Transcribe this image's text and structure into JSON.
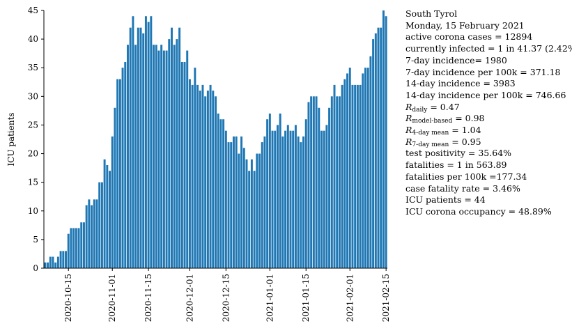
{
  "chart_data": {
    "type": "bar",
    "ylabel": "ICU patients",
    "xlabel": "",
    "ylim": [
      0,
      45
    ],
    "yticks": [
      0,
      5,
      10,
      15,
      20,
      25,
      30,
      35,
      40,
      45
    ],
    "start_date": "2020-10-06",
    "end_date": "2021-02-15",
    "xtick_labels": [
      "2020-10-15",
      "2020-11-01",
      "2020-11-15",
      "2020-12-01",
      "2020-12-15",
      "2021-01-01",
      "2021-01-15",
      "2021-02-01",
      "2021-02-15"
    ],
    "bar_color": "#1f77b4",
    "grid": false,
    "values": [
      1,
      1,
      2,
      2,
      1,
      2,
      3,
      3,
      3,
      6,
      7,
      7,
      7,
      7,
      8,
      8,
      11,
      12,
      11,
      12,
      12,
      15,
      15,
      19,
      18,
      17,
      23,
      28,
      33,
      33,
      35,
      36,
      39,
      42,
      44,
      39,
      42,
      42,
      41,
      44,
      43,
      44,
      39,
      39,
      38,
      39,
      38,
      38,
      40,
      42,
      39,
      40,
      42,
      36,
      36,
      38,
      33,
      32,
      35,
      32,
      31,
      32,
      30,
      31,
      32,
      31,
      30,
      27,
      26,
      26,
      24,
      22,
      22,
      23,
      23,
      20,
      23,
      21,
      19,
      17,
      19,
      17,
      20,
      20,
      22,
      23,
      26,
      27,
      24,
      24,
      25,
      27,
      23,
      24,
      25,
      24,
      24,
      25,
      23,
      22,
      23,
      26,
      29,
      30,
      30,
      30,
      28,
      24,
      24,
      25,
      28,
      30,
      32,
      30,
      30,
      32,
      33,
      34,
      35,
      32,
      32,
      32,
      32,
      34,
      35,
      35,
      37,
      40,
      41,
      42,
      42,
      45,
      44
    ]
  },
  "stats": {
    "region": "South Tyrol",
    "date": "Monday, 15 February 2021",
    "active_cases": "active corona cases = 12894",
    "currently_infected": "currently infected = 1 in 41.37 (2.42%)",
    "incidence_7d": "7-day incidence= 1980",
    "incidence_7d_100k": "7-day incidence per 100k = 371.18",
    "incidence_14d": "14-day incidence = 3983",
    "incidence_14d_100k": "14-day incidence per 100k = 746.66",
    "r_daily": {
      "symbol": "R",
      "sub": "daily",
      "value": " = 0.47"
    },
    "r_model": {
      "symbol": "R",
      "sub": "model-based",
      "value": " = 0.98"
    },
    "r_4day": {
      "symbol": "R",
      "sub": "4-day mean",
      "value": " = 1.04"
    },
    "r_7day": {
      "symbol": "R",
      "sub": "7-day mean",
      "value": " = 0.95"
    },
    "test_positivity": "test positivity = 35.64%",
    "fatalities": "fatalities = 1 in 563.89",
    "fatalities_100k": "fatalities per 100k =177.34",
    "case_fatality": "case fatality rate = 3.46%",
    "icu_patients": "ICU patients = 44",
    "icu_occupancy": "ICU corona occupancy = 48.89%"
  }
}
